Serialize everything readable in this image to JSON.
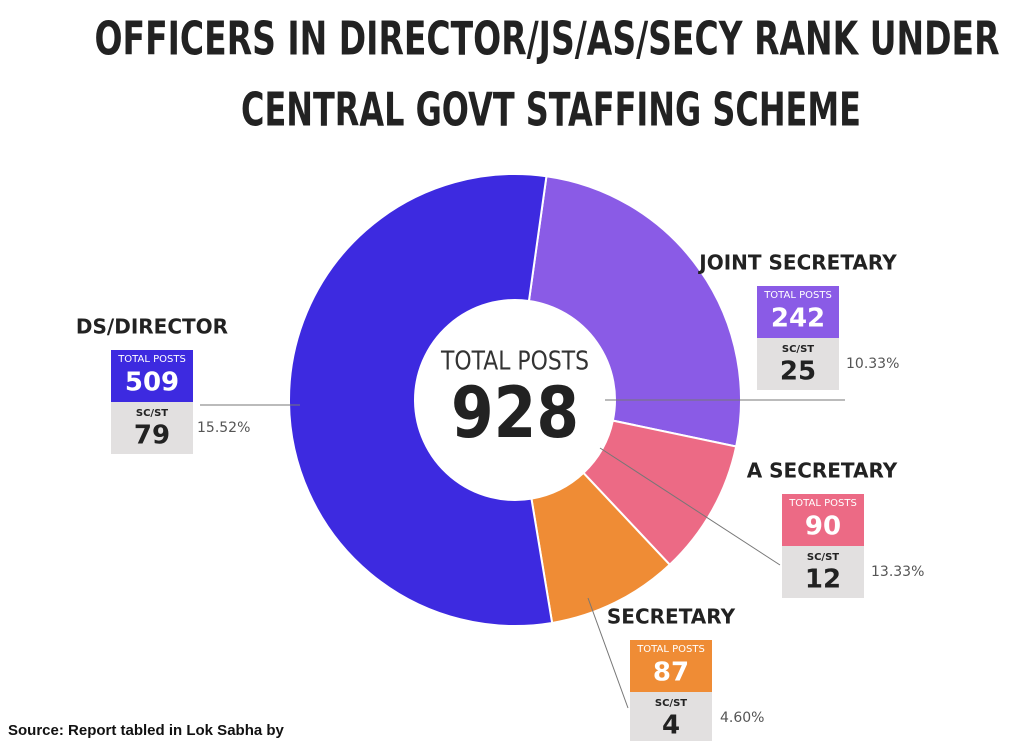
{
  "chart_data": {
    "type": "donut",
    "title": [
      "OFFICERS IN DIRECTOR/JS/AS/SECY RANK UNDER",
      "CENTRAL GOVT STAFFING SCHEME"
    ],
    "center_label": "TOTAL POSTS",
    "total": 928,
    "categories": [
      "DS/DIRECTOR",
      "JOINT SECRETARY",
      "A SECRETARY",
      "SECRETARY"
    ],
    "colors": [
      "#3d2ae0",
      "#8a5be6",
      "#ec6a85",
      "#ef8c35"
    ],
    "series": [
      {
        "name": "TOTAL POSTS",
        "values": [
          509,
          242,
          90,
          87
        ]
      },
      {
        "name": "SC/ST",
        "values": [
          79,
          25,
          12,
          4
        ]
      }
    ],
    "sc_st_share": {
      "values": [
        15.52,
        10.33,
        13.33,
        4.6
      ],
      "value_labels": [
        "15.52%",
        "10.33%",
        "13.33%",
        "4.60%"
      ]
    }
  },
  "source": "Source: Report tabled in Lok Sabha by"
}
